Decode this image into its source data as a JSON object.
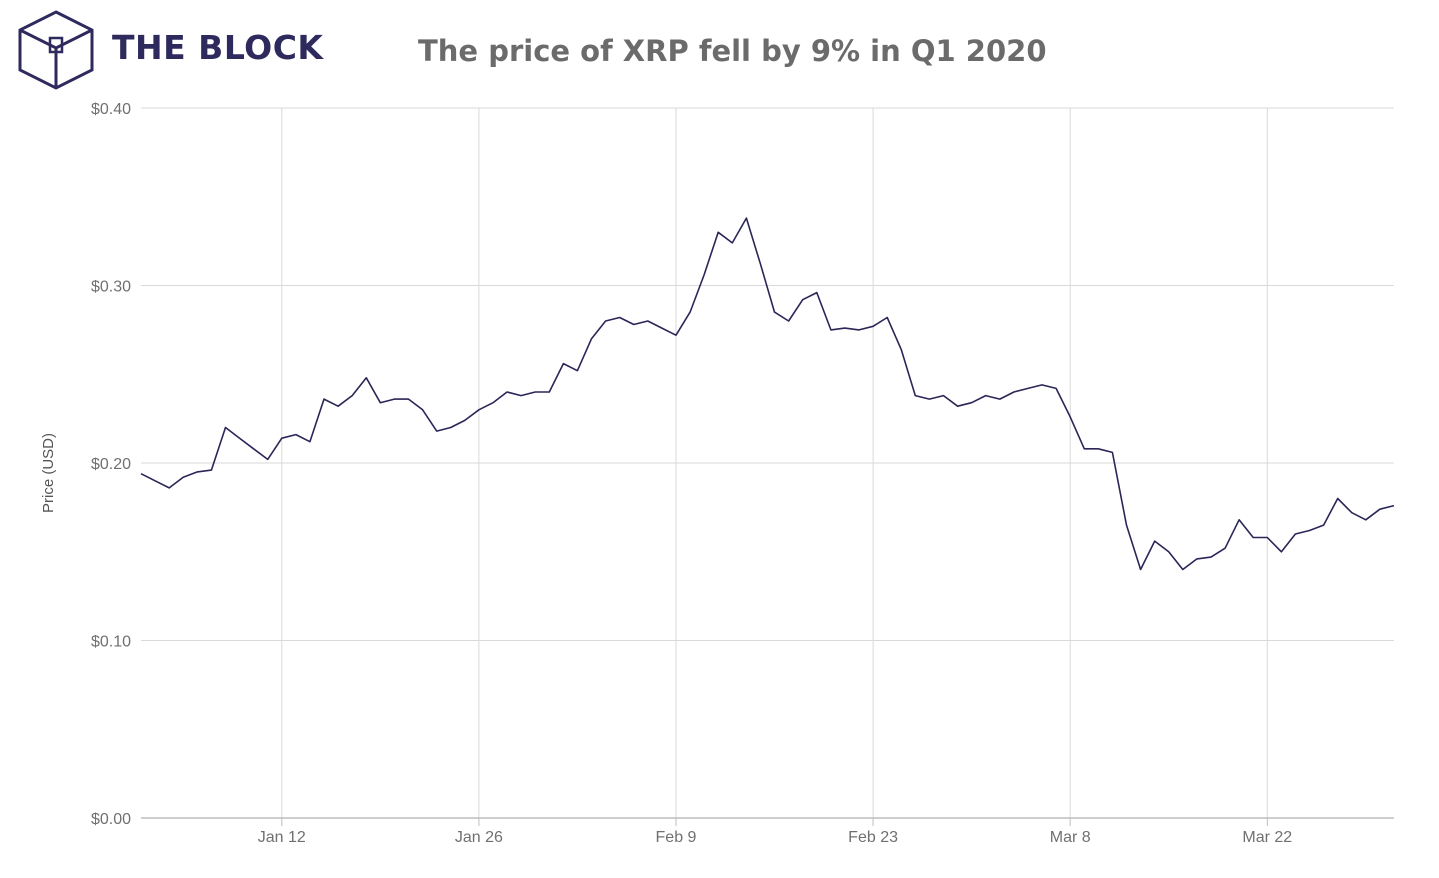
{
  "brand": {
    "name": "THE BLOCK",
    "color": "#2e2a5e",
    "icon": "cube-logo-icon"
  },
  "chart_data": {
    "type": "line",
    "title": "The price of XRP fell by 9% in Q1 2020",
    "xlabel": "",
    "ylabel": "Price (USD)",
    "x_range": [
      "2020-01-02",
      "2020-03-31"
    ],
    "ylim": [
      0,
      0.4
    ],
    "y_ticks": [
      0.0,
      0.1,
      0.2,
      0.3,
      0.4
    ],
    "y_tick_labels": [
      "$0.00",
      "$0.10",
      "$0.20",
      "$0.30",
      "$0.40"
    ],
    "x_ticks": [
      "2020-01-12",
      "2020-01-26",
      "2020-02-09",
      "2020-02-23",
      "2020-03-08",
      "2020-03-22"
    ],
    "x_tick_labels": [
      "Jan 12",
      "Jan 26",
      "Feb 9",
      "Feb 23",
      "Mar 8",
      "Mar 22"
    ],
    "grid": true,
    "legend": "none",
    "series": [
      {
        "color": "#2a2657",
        "points": [
          [
            "2020-01-02",
            0.194
          ],
          [
            "2020-01-03",
            0.19
          ],
          [
            "2020-01-04",
            0.186
          ],
          [
            "2020-01-05",
            0.192
          ],
          [
            "2020-01-06",
            0.195
          ],
          [
            "2020-01-07",
            0.196
          ],
          [
            "2020-01-08",
            0.22
          ],
          [
            "2020-01-09",
            0.214
          ],
          [
            "2020-01-10",
            0.208
          ],
          [
            "2020-01-11",
            0.202
          ],
          [
            "2020-01-12",
            0.214
          ],
          [
            "2020-01-13",
            0.216
          ],
          [
            "2020-01-14",
            0.212
          ],
          [
            "2020-01-15",
            0.236
          ],
          [
            "2020-01-16",
            0.232
          ],
          [
            "2020-01-17",
            0.238
          ],
          [
            "2020-01-18",
            0.248
          ],
          [
            "2020-01-19",
            0.234
          ],
          [
            "2020-01-20",
            0.236
          ],
          [
            "2020-01-21",
            0.236
          ],
          [
            "2020-01-22",
            0.23
          ],
          [
            "2020-01-23",
            0.218
          ],
          [
            "2020-01-24",
            0.22
          ],
          [
            "2020-01-25",
            0.224
          ],
          [
            "2020-01-26",
            0.23
          ],
          [
            "2020-01-27",
            0.234
          ],
          [
            "2020-01-28",
            0.24
          ],
          [
            "2020-01-29",
            0.238
          ],
          [
            "2020-01-30",
            0.24
          ],
          [
            "2020-01-31",
            0.24
          ],
          [
            "2020-02-01",
            0.256
          ],
          [
            "2020-02-02",
            0.252
          ],
          [
            "2020-02-03",
            0.27
          ],
          [
            "2020-02-04",
            0.28
          ],
          [
            "2020-02-05",
            0.282
          ],
          [
            "2020-02-06",
            0.278
          ],
          [
            "2020-02-07",
            0.28
          ],
          [
            "2020-02-08",
            0.276
          ],
          [
            "2020-02-09",
            0.272
          ],
          [
            "2020-02-10",
            0.285
          ],
          [
            "2020-02-11",
            0.306
          ],
          [
            "2020-02-12",
            0.33
          ],
          [
            "2020-02-13",
            0.324
          ],
          [
            "2020-02-14",
            0.338
          ],
          [
            "2020-02-15",
            0.312
          ],
          [
            "2020-02-16",
            0.285
          ],
          [
            "2020-02-17",
            0.28
          ],
          [
            "2020-02-18",
            0.292
          ],
          [
            "2020-02-19",
            0.296
          ],
          [
            "2020-02-20",
            0.275
          ],
          [
            "2020-02-21",
            0.276
          ],
          [
            "2020-02-22",
            0.275
          ],
          [
            "2020-02-23",
            0.277
          ],
          [
            "2020-02-24",
            0.282
          ],
          [
            "2020-02-25",
            0.264
          ],
          [
            "2020-02-26",
            0.238
          ],
          [
            "2020-02-27",
            0.236
          ],
          [
            "2020-02-28",
            0.238
          ],
          [
            "2020-02-29",
            0.232
          ],
          [
            "2020-03-01",
            0.234
          ],
          [
            "2020-03-02",
            0.238
          ],
          [
            "2020-03-03",
            0.236
          ],
          [
            "2020-03-04",
            0.24
          ],
          [
            "2020-03-05",
            0.242
          ],
          [
            "2020-03-06",
            0.244
          ],
          [
            "2020-03-07",
            0.242
          ],
          [
            "2020-03-08",
            0.226
          ],
          [
            "2020-03-09",
            0.208
          ],
          [
            "2020-03-10",
            0.208
          ],
          [
            "2020-03-11",
            0.206
          ],
          [
            "2020-03-12",
            0.165
          ],
          [
            "2020-03-13",
            0.14
          ],
          [
            "2020-03-14",
            0.156
          ],
          [
            "2020-03-15",
            0.15
          ],
          [
            "2020-03-16",
            0.14
          ],
          [
            "2020-03-17",
            0.146
          ],
          [
            "2020-03-18",
            0.147
          ],
          [
            "2020-03-19",
            0.152
          ],
          [
            "2020-03-20",
            0.168
          ],
          [
            "2020-03-21",
            0.158
          ],
          [
            "2020-03-22",
            0.158
          ],
          [
            "2020-03-23",
            0.15
          ],
          [
            "2020-03-24",
            0.16
          ],
          [
            "2020-03-25",
            0.162
          ],
          [
            "2020-03-26",
            0.165
          ],
          [
            "2020-03-27",
            0.18
          ],
          [
            "2020-03-28",
            0.172
          ],
          [
            "2020-03-29",
            0.168
          ],
          [
            "2020-03-30",
            0.174
          ],
          [
            "2020-03-31",
            0.176
          ]
        ]
      }
    ]
  },
  "colors": {
    "title": "#6b6b6b",
    "axis_text": "#707070",
    "grid": "#d9d9d9",
    "axis": "#bdbdbd"
  }
}
